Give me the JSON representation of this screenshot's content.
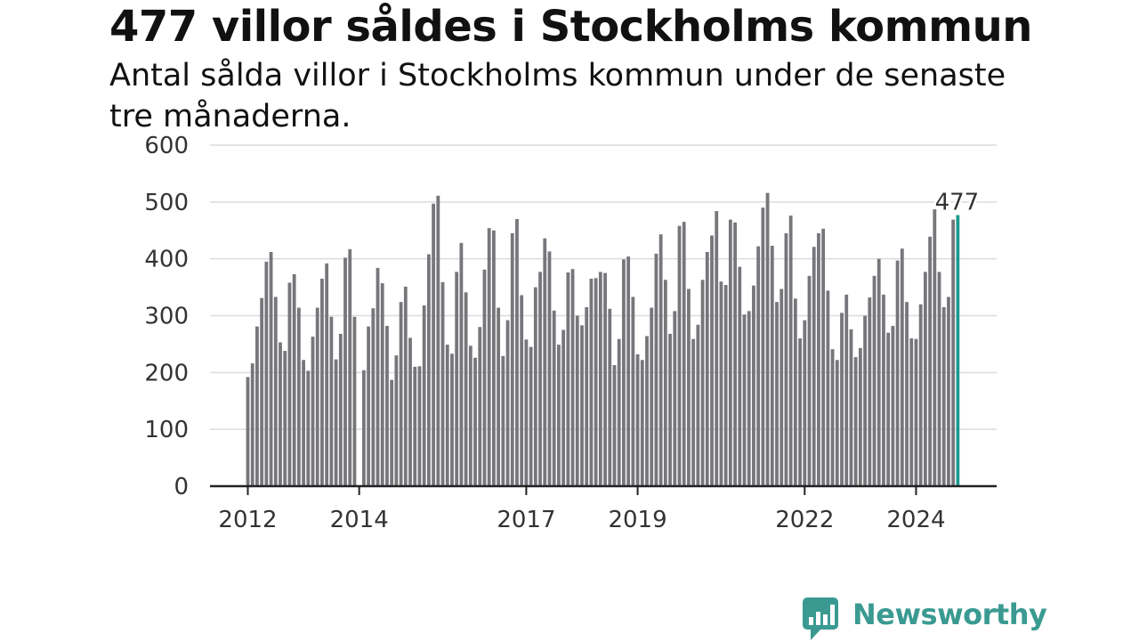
{
  "title": "477 villor såldes i Stockholms kommun",
  "subtitle": "Antal sålda villor i Stockholms kommun under de senaste tre månaderna.",
  "brand": {
    "name": "Newsworthy",
    "color": "#3a9a92",
    "icon": "newsworthy-logo-icon"
  },
  "colors": {
    "bar": "#76767b",
    "highlight": "#1a9a8e",
    "grid": "#dcdcdc",
    "axis": "#222222"
  },
  "chart_data": {
    "type": "bar",
    "title": "477 villor såldes i Stockholms kommun",
    "subtitle": "Antal sålda villor i Stockholms kommun under de senaste tre månaderna.",
    "xlabel": "",
    "ylabel": "",
    "ylim": [
      0,
      600
    ],
    "yticks": [
      0,
      100,
      200,
      300,
      400,
      500,
      600
    ],
    "grid": true,
    "x_tick_labels": [
      "2012",
      "2014",
      "2017",
      "2019",
      "2022",
      "2024"
    ],
    "x_tick_indices": [
      0,
      24,
      60,
      84,
      120,
      144
    ],
    "highlight_index": 153,
    "highlight_label": "477",
    "values": [
      192,
      216,
      281,
      331,
      395,
      412,
      333,
      253,
      238,
      358,
      373,
      314,
      222,
      203,
      263,
      314,
      365,
      392,
      298,
      223,
      268,
      402,
      417,
      298,
      null,
      204,
      281,
      313,
      384,
      357,
      282,
      187,
      230,
      324,
      351,
      261,
      210,
      211,
      318,
      408,
      497,
      511,
      359,
      249,
      233,
      377,
      428,
      341,
      247,
      226,
      280,
      381,
      454,
      450,
      314,
      229,
      292,
      445,
      470,
      336,
      258,
      245,
      350,
      377,
      436,
      413,
      309,
      249,
      275,
      376,
      382,
      300,
      283,
      315,
      365,
      366,
      377,
      375,
      312,
      213,
      259,
      399,
      404,
      333,
      232,
      222,
      264,
      314,
      409,
      443,
      363,
      268,
      308,
      458,
      465,
      347,
      259,
      284,
      363,
      412,
      441,
      484,
      360,
      354,
      469,
      464,
      386,
      302,
      308,
      353,
      422,
      490,
      516,
      423,
      324,
      347,
      445,
      476,
      330,
      260,
      292,
      370,
      421,
      445,
      453,
      344,
      241,
      222,
      305,
      337,
      276,
      227,
      243,
      300,
      332,
      370,
      400,
      337,
      270,
      282,
      397,
      418,
      324,
      260,
      259,
      320,
      377,
      439,
      487,
      377,
      315,
      333,
      469,
      477
    ]
  }
}
